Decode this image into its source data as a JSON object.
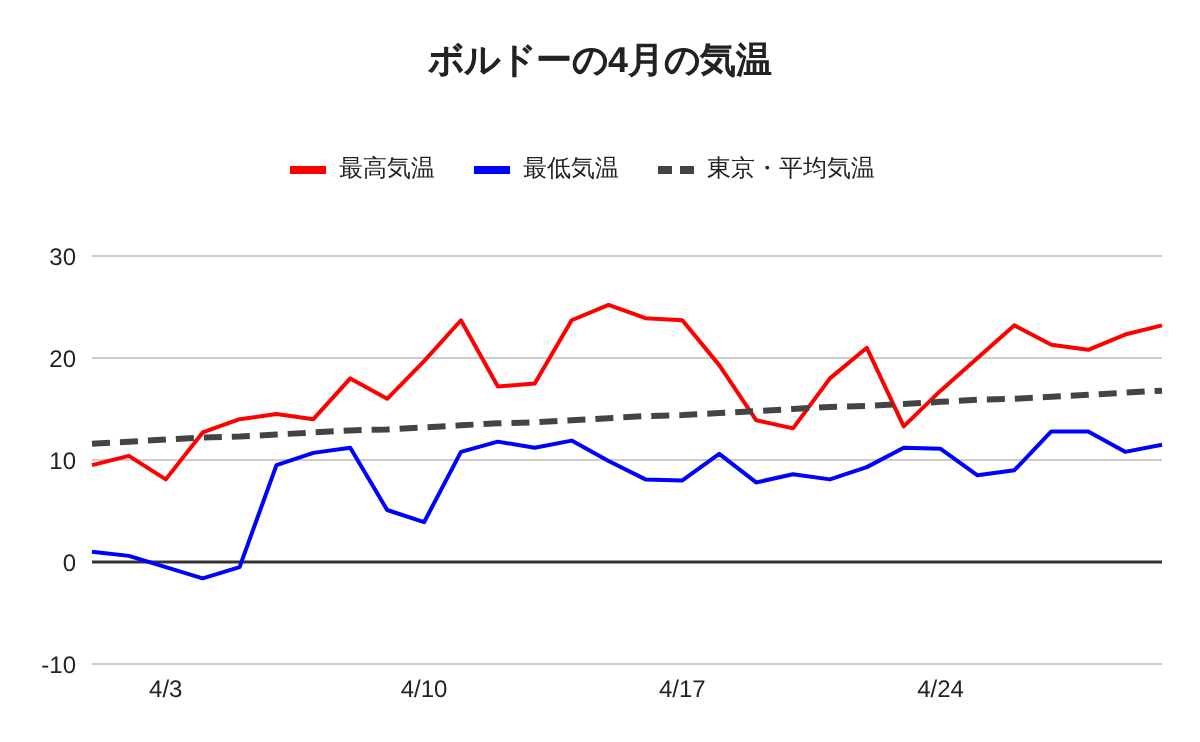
{
  "chart_data": {
    "type": "line",
    "title": "ボルドーの4月の気温",
    "categories": [
      null,
      null,
      "4/3",
      null,
      null,
      null,
      null,
      null,
      null,
      "4/10",
      null,
      null,
      null,
      null,
      null,
      null,
      "4/17",
      null,
      null,
      null,
      null,
      null,
      null,
      "4/24",
      null,
      null,
      null,
      null,
      null,
      null
    ],
    "series": [
      {
        "name": "最高気温",
        "color": "#ff0000",
        "line_style": "solid",
        "values": [
          9.5,
          10.4,
          8.1,
          12.7,
          14.0,
          14.5,
          14.0,
          18.0,
          16.0,
          19.7,
          23.7,
          17.2,
          17.5,
          23.7,
          25.2,
          23.9,
          23.7,
          19.3,
          13.9,
          13.1,
          18.0,
          21.0,
          13.3,
          16.8,
          20.0,
          23.2,
          21.3,
          20.8,
          22.3,
          23.2
        ]
      },
      {
        "name": "最低気温",
        "color": "#0000ff",
        "line_style": "solid",
        "values": [
          1.0,
          0.6,
          -0.5,
          -1.6,
          -0.5,
          9.5,
          10.7,
          11.2,
          5.1,
          3.9,
          10.8,
          11.8,
          11.2,
          11.9,
          9.9,
          8.1,
          8.0,
          10.6,
          7.8,
          8.6,
          8.1,
          9.3,
          11.2,
          11.1,
          8.5,
          9.0,
          12.8,
          12.8,
          10.8,
          11.5
        ]
      },
      {
        "name": "東京・平均気温",
        "color": "#444444",
        "line_style": "dashed",
        "values": [
          11.6,
          11.8,
          12.0,
          12.2,
          12.3,
          12.5,
          12.7,
          12.9,
          13.0,
          13.2,
          13.4,
          13.6,
          13.7,
          13.9,
          14.1,
          14.3,
          14.4,
          14.6,
          14.8,
          15.0,
          15.2,
          15.3,
          15.5,
          15.7,
          15.9,
          16.0,
          16.2,
          16.4,
          16.6,
          16.8
        ]
      }
    ],
    "ylim": [
      -10,
      30
    ],
    "yticks": [
      -10,
      0,
      10,
      20,
      30
    ],
    "grid": "y",
    "legend": "top",
    "marker": "none",
    "ref_lines": [
      {
        "axis": "y",
        "value": 0,
        "color": "#333333"
      }
    ]
  }
}
